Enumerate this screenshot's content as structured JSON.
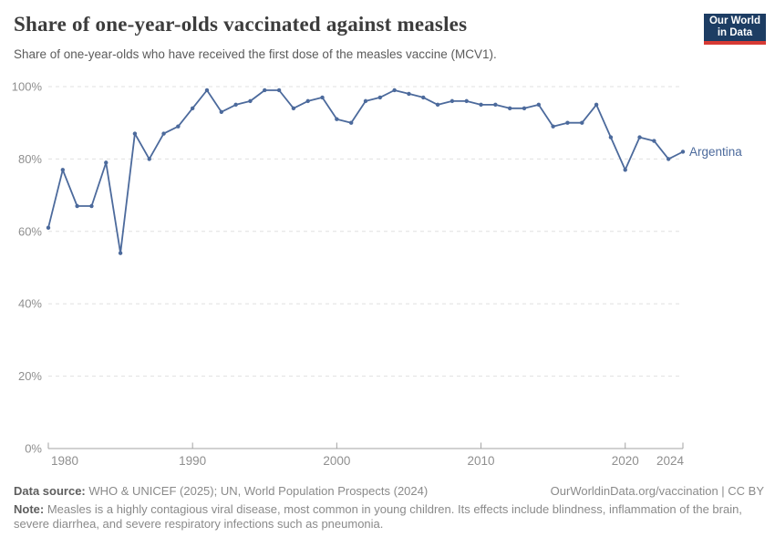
{
  "header": {
    "title": "Share of one-year-olds vaccinated against measles",
    "subtitle": "Share of one-year-olds who have received the first dose of the measles vaccine (MCV1).",
    "logo_line1": "Our World",
    "logo_line2": "in Data"
  },
  "chart_data": {
    "type": "line",
    "title": "Share of one-year-olds vaccinated against measles",
    "subtitle": "Share of one-year-olds who have received the first dose of the measles vaccine (MCV1).",
    "xlabel": "",
    "ylabel": "",
    "ylim": [
      0,
      100
    ],
    "grid": "horizontal-dashed",
    "legend_position": "end-of-line-label",
    "x": [
      1980,
      1981,
      1982,
      1983,
      1984,
      1985,
      1986,
      1987,
      1988,
      1989,
      1990,
      1991,
      1992,
      1993,
      1994,
      1995,
      1996,
      1997,
      1998,
      1999,
      2000,
      2001,
      2002,
      2003,
      2004,
      2005,
      2006,
      2007,
      2008,
      2009,
      2010,
      2011,
      2012,
      2013,
      2014,
      2015,
      2016,
      2017,
      2018,
      2019,
      2020,
      2021,
      2022,
      2023,
      2024
    ],
    "series": [
      {
        "name": "Argentina",
        "values": [
          61,
          77,
          67,
          67,
          79,
          54,
          87,
          80,
          87,
          89,
          94,
          99,
          93,
          95,
          96,
          99,
          99,
          94,
          96,
          97,
          91,
          90,
          96,
          97,
          99,
          98,
          97,
          95,
          96,
          96,
          95,
          95,
          94,
          94,
          95,
          89,
          90,
          90,
          95,
          86,
          77,
          86,
          85,
          80,
          82
        ]
      }
    ],
    "yticks": [
      {
        "v": 0,
        "label": "0%"
      },
      {
        "v": 20,
        "label": "20%"
      },
      {
        "v": 40,
        "label": "40%"
      },
      {
        "v": 60,
        "label": "60%"
      },
      {
        "v": 80,
        "label": "80%"
      },
      {
        "v": 100,
        "label": "100%"
      }
    ],
    "xticks": [
      {
        "v": 1980,
        "label": "1980",
        "anchor": "start"
      },
      {
        "v": 1990,
        "label": "1990",
        "anchor": "middle"
      },
      {
        "v": 2000,
        "label": "2000",
        "anchor": "middle"
      },
      {
        "v": 2010,
        "label": "2010",
        "anchor": "middle"
      },
      {
        "v": 2020,
        "label": "2020",
        "anchor": "middle"
      },
      {
        "v": 2024,
        "label": "2024",
        "anchor": "end"
      }
    ]
  },
  "colors": {
    "line": "#4c6a9c",
    "end_label": "#4c6a9c",
    "grid": "#e0e0e0",
    "axis": "#a3a3a3",
    "tick_text": "#8f8f8f",
    "logo_bg": "#1d3d63",
    "logo_stripe": "#d73a34"
  },
  "footer": {
    "source_label": "Data source:",
    "source_text": " WHO & UNICEF (2025); UN, World Population Prospects (2024)",
    "link": "OurWorldinData.org/vaccination | CC BY",
    "note_label": "Note:",
    "note_text": " Measles is a highly contagious viral disease, most common in young children. Its effects include blindness, inflammation of the brain, severe diarrhea, and severe respiratory infections such as pneumonia."
  }
}
